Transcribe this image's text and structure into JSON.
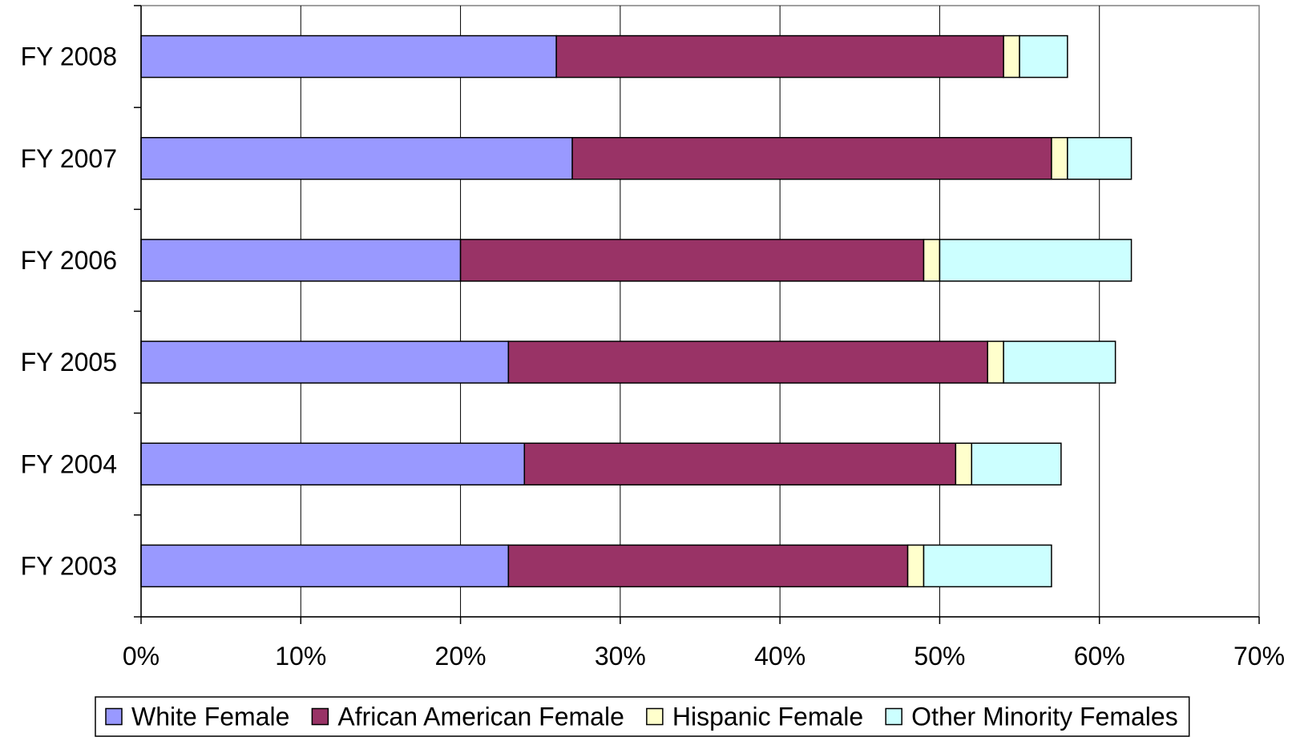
{
  "chart_data": {
    "type": "bar",
    "orientation": "horizontal",
    "stacked": true,
    "categories": [
      "FY 2008",
      "FY 2007",
      "FY 2006",
      "FY 2005",
      "FY 2004",
      "FY 2003"
    ],
    "series": [
      {
        "name": "White Female",
        "color": "#9999ff",
        "values": [
          26,
          27,
          20,
          23,
          24,
          23
        ]
      },
      {
        "name": "African American Female",
        "color": "#993366",
        "values": [
          28,
          30,
          29,
          30,
          27,
          25
        ]
      },
      {
        "name": "Hispanic Female",
        "color": "#ffffcc",
        "values": [
          1,
          1,
          1,
          1,
          1,
          1
        ]
      },
      {
        "name": "Other Minority Females",
        "color": "#ccffff",
        "values": [
          3,
          4,
          12,
          7,
          5.6,
          8
        ]
      }
    ],
    "x_ticks": [
      "0%",
      "10%",
      "20%",
      "30%",
      "40%",
      "50%",
      "60%",
      "70%"
    ],
    "xlim": [
      0,
      70
    ],
    "grid": true,
    "legend_position": "bottom"
  }
}
